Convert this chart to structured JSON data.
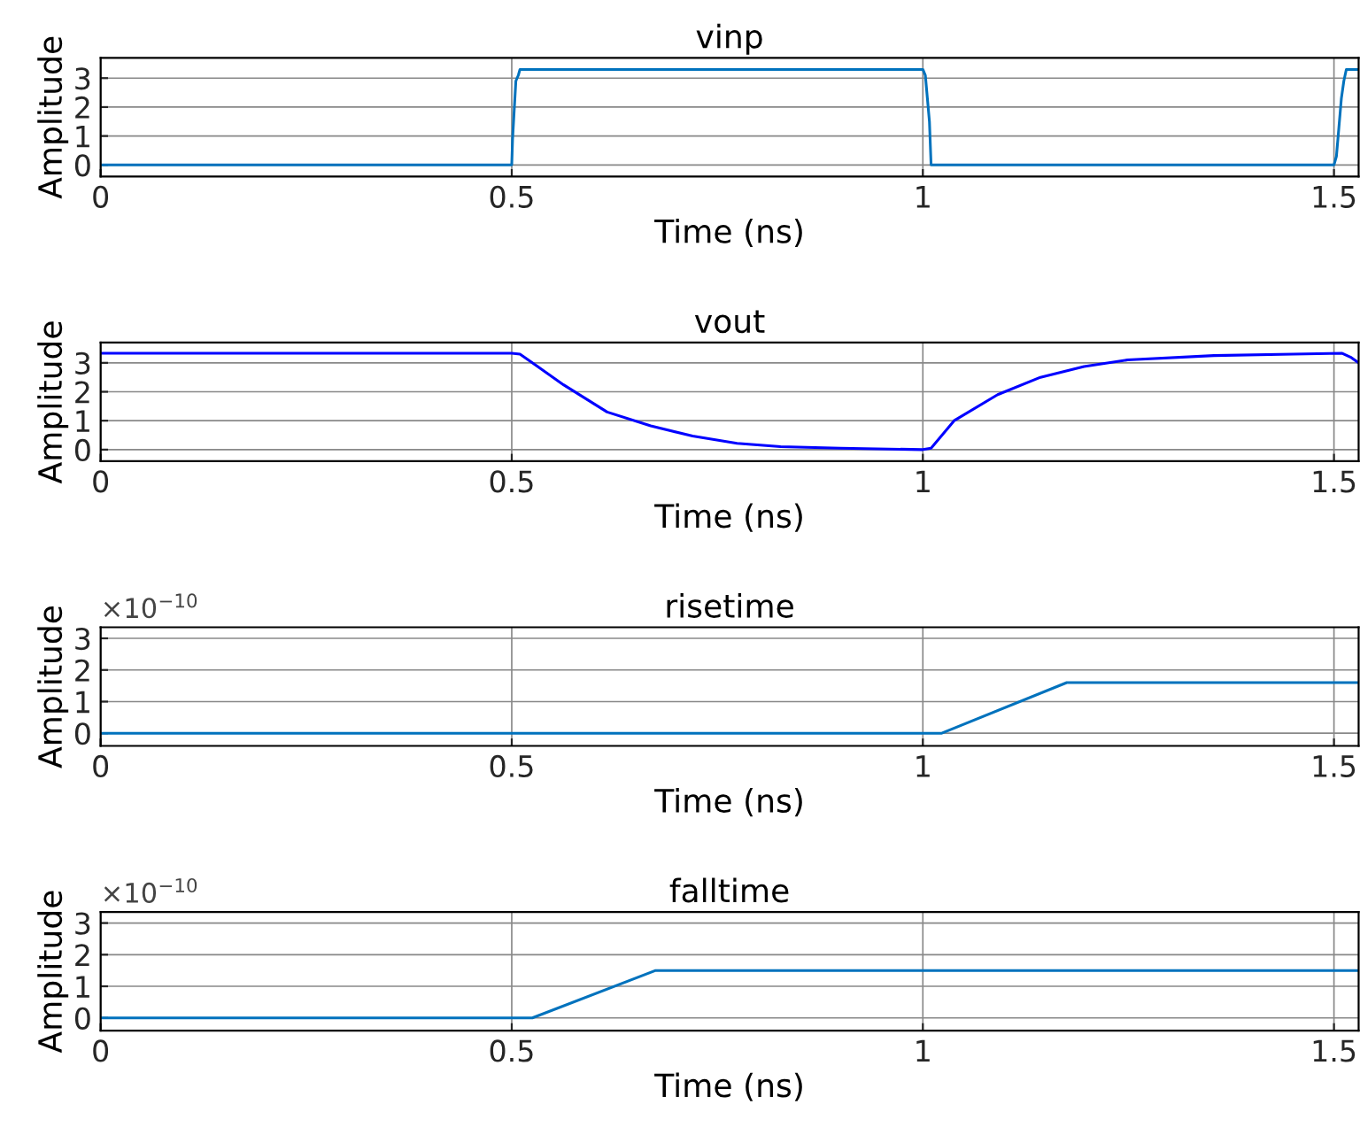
{
  "chart_data": [
    {
      "type": "line",
      "title": "vinp",
      "xlabel": "Time (ns)",
      "ylabel": "Amplitude",
      "xlim": [
        0,
        1.53
      ],
      "xticks": [
        0,
        0.5,
        1,
        1.5
      ],
      "ylim": [
        -0.4,
        3.7
      ],
      "yticks": [
        0,
        1,
        2,
        3
      ],
      "grid": true,
      "series": [
        {
          "color": "#0072bd",
          "x": [
            0,
            0.5,
            0.501,
            0.503,
            0.505,
            0.508,
            0.51,
            1.0,
            1.003,
            1.008,
            1.01,
            1.5,
            1.503,
            1.506,
            1.509,
            1.512,
            1.515,
            1.53
          ],
          "values": [
            0,
            0,
            0.9,
            1.9,
            2.9,
            3.1,
            3.3,
            3.3,
            3.1,
            1.5,
            0,
            0,
            0.3,
            1.3,
            2.3,
            2.9,
            3.3,
            3.3
          ]
        }
      ]
    },
    {
      "type": "line",
      "title": "vout",
      "xlabel": "Time (ns)",
      "ylabel": "Amplitude",
      "xlim": [
        0,
        1.53
      ],
      "xticks": [
        0,
        0.5,
        1,
        1.5
      ],
      "ylim": [
        -0.4,
        3.7
      ],
      "yticks": [
        0,
        1,
        2,
        3
      ],
      "grid": true,
      "series": [
        {
          "color": "#0000ff",
          "x": [
            0,
            0.5,
            0.51,
            0.53,
            0.563,
            0.616,
            0.669,
            0.72,
            0.774,
            0.827,
            0.9,
            1.0,
            1.01,
            1.038,
            1.091,
            1.143,
            1.196,
            1.249,
            1.354,
            1.45,
            1.51,
            1.52,
            1.53
          ],
          "values": [
            3.33,
            3.33,
            3.3,
            2.9,
            2.24,
            1.3,
            0.82,
            0.47,
            0.22,
            0.1,
            0.05,
            0,
            0.05,
            1.0,
            1.9,
            2.5,
            2.87,
            3.1,
            3.25,
            3.3,
            3.33,
            3.2,
            3.0
          ]
        }
      ]
    },
    {
      "type": "line",
      "title": "risetime",
      "xlabel": "Time (ns)",
      "ylabel": "Amplitude",
      "annotations": [
        "×10$^{−10}$"
      ],
      "xlim": [
        0,
        1.53
      ],
      "xticks": [
        0,
        0.5,
        1,
        1.5
      ],
      "ylim": [
        -0.4,
        3.35
      ],
      "yticks": [
        0,
        1,
        2,
        3
      ],
      "grid": true,
      "series": [
        {
          "color": "#0072bd",
          "x": [
            0,
            1.023,
            1.175,
            1.53
          ],
          "values": [
            0,
            0,
            1.6,
            1.6
          ]
        }
      ]
    },
    {
      "type": "line",
      "title": "falltime",
      "xlabel": "Time (ns)",
      "ylabel": "Amplitude",
      "annotations": [
        "×10$^{−10}$"
      ],
      "xlim": [
        0,
        1.53
      ],
      "xticks": [
        0,
        0.5,
        1,
        1.5
      ],
      "ylim": [
        -0.4,
        3.35
      ],
      "yticks": [
        0,
        1,
        2,
        3
      ],
      "grid": true,
      "series": [
        {
          "color": "#0072bd",
          "x": [
            0,
            0.525,
            0.675,
            1.53
          ],
          "values": [
            0,
            0,
            1.5,
            1.5
          ]
        }
      ]
    }
  ]
}
